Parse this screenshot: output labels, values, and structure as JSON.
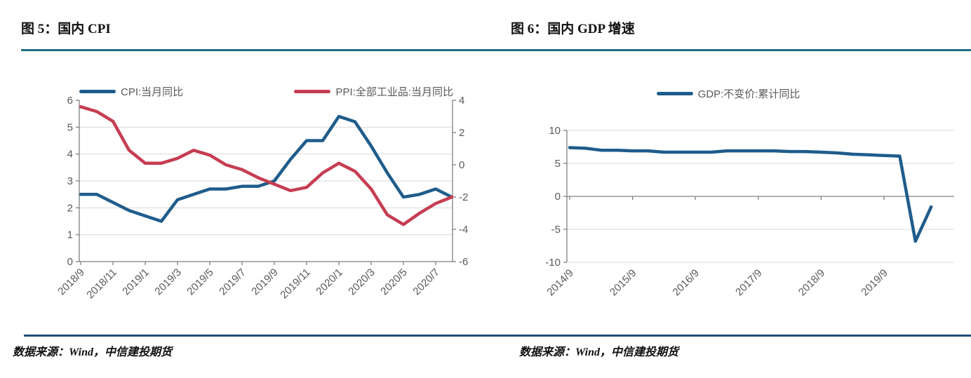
{
  "page": {
    "background": "#ffffff",
    "top_rule_color": "#1e6f86",
    "bottom_rule_color": "#1f4e79"
  },
  "figures": [
    {
      "title": "图 5：国内 CPI",
      "source": "数据来源：Wind，中信建投期货"
    },
    {
      "title": "图 6：国内 GDP 增速",
      "source": "数据来源：Wind，中信建投期货"
    }
  ],
  "chart_data": [
    {
      "type": "line",
      "title": "图 5：国内 CPI",
      "legend_position": "top",
      "grid": "horizontal",
      "x": [
        "2018/9",
        "2018/10",
        "2018/11",
        "2018/12",
        "2019/1",
        "2019/2",
        "2019/3",
        "2019/4",
        "2019/5",
        "2019/6",
        "2019/7",
        "2019/8",
        "2019/9",
        "2019/10",
        "2019/11",
        "2019/12",
        "2020/1",
        "2020/2",
        "2020/3",
        "2020/4",
        "2020/5",
        "2020/6",
        "2020/7",
        "2020/8"
      ],
      "x_tick_labels": [
        "2018/9",
        "2018/11",
        "2019/1",
        "2019/3",
        "2019/5",
        "2019/7",
        "2019/9",
        "2019/11",
        "2020/1",
        "2020/3",
        "2020/5",
        "2020/7"
      ],
      "left_axis": {
        "min": 0,
        "max": 6,
        "ticks": [
          0,
          1,
          2,
          3,
          4,
          5,
          6
        ]
      },
      "right_axis": {
        "min": -6,
        "max": 4,
        "ticks": [
          -6,
          -4,
          -2,
          0,
          2,
          4
        ]
      },
      "series": [
        {
          "name": "CPI:当月同比",
          "axis": "left",
          "color": "#1f5c8b",
          "values": [
            2.5,
            2.5,
            2.2,
            1.9,
            1.7,
            1.5,
            2.3,
            2.5,
            2.7,
            2.7,
            2.8,
            2.8,
            3.0,
            3.8,
            4.5,
            4.5,
            5.4,
            5.2,
            4.3,
            3.3,
            2.4,
            2.5,
            2.7,
            2.4
          ]
        },
        {
          "name": "PPI:全部工业品:当月同比",
          "axis": "right",
          "color": "#c63d52",
          "values": [
            3.6,
            3.3,
            2.7,
            0.9,
            0.1,
            0.1,
            0.4,
            0.9,
            0.6,
            0.0,
            -0.3,
            -0.8,
            -1.2,
            -1.6,
            -1.4,
            -0.5,
            0.1,
            -0.4,
            -1.5,
            -3.1,
            -3.7,
            -3.0,
            -2.4,
            -2.0
          ]
        }
      ]
    },
    {
      "type": "line",
      "title": "图 6：国内 GDP 增速",
      "legend_position": "top",
      "grid": "horizontal",
      "x": [
        "2014/9",
        "2014/12",
        "2015/3",
        "2015/6",
        "2015/9",
        "2015/12",
        "2016/3",
        "2016/6",
        "2016/9",
        "2016/12",
        "2017/3",
        "2017/6",
        "2017/9",
        "2017/12",
        "2018/3",
        "2018/6",
        "2018/9",
        "2018/12",
        "2019/3",
        "2019/6",
        "2019/9",
        "2019/12",
        "2020/3",
        "2020/6"
      ],
      "x_tick_labels": [
        "2014/9",
        "2015/9",
        "2016/9",
        "2017/9",
        "2018/9",
        "2019/9"
      ],
      "left_axis": {
        "min": -10,
        "max": 10,
        "ticks": [
          -10,
          -5,
          0,
          5,
          10
        ]
      },
      "series": [
        {
          "name": "GDP:不变价:累计同比",
          "axis": "left",
          "color": "#1f5c8b",
          "values": [
            7.4,
            7.3,
            7.0,
            7.0,
            6.9,
            6.9,
            6.7,
            6.7,
            6.7,
            6.7,
            6.9,
            6.9,
            6.9,
            6.9,
            6.8,
            6.8,
            6.7,
            6.6,
            6.4,
            6.3,
            6.2,
            6.1,
            -6.8,
            -1.6
          ]
        }
      ]
    }
  ],
  "style": {
    "grid_color": "#d9d9d9",
    "axis_color": "#808080",
    "tick_label_color": "#595959"
  }
}
